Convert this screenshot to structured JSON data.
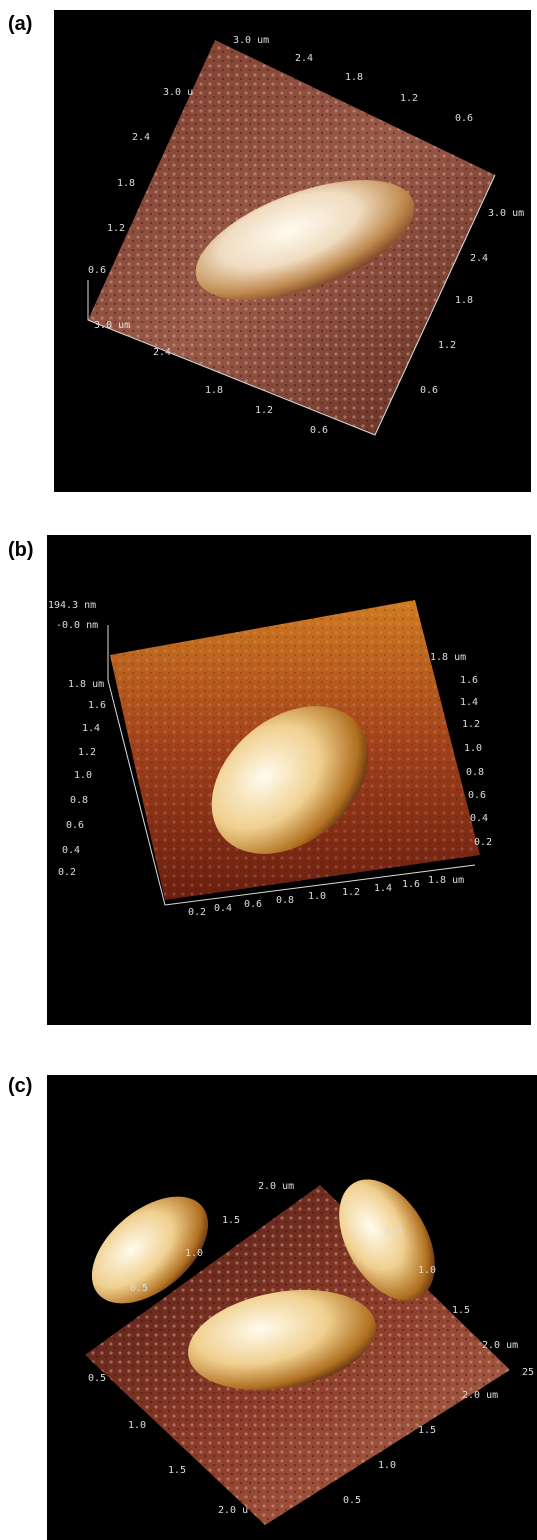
{
  "panels": [
    {
      "label": "(a)",
      "axis_labels": [
        "3.0 um",
        "2.4",
        "1.8",
        "1.2",
        "0.6",
        "3.0 u",
        "2.4",
        "1.8",
        "1.2",
        "0.6",
        "3.0 um",
        "2.4",
        "1.8",
        "1.2",
        "0.6",
        "3.0 um",
        "2.4",
        "1.8",
        "1.2",
        "0.6"
      ]
    },
    {
      "label": "(b)",
      "axis_labels": [
        "194.3 nm",
        "-0.0 nm",
        "1.8 um",
        "1.6",
        "1.4",
        "1.2",
        "1.0",
        "0.8",
        "0.6",
        "0.4",
        "0.2",
        "1.8 um",
        "1.6",
        "1.4",
        "1.2",
        "1.0",
        "0.8",
        "0.6",
        "0.4",
        "0.2",
        "0.2",
        "0.4",
        "0.6",
        "0.8",
        "1.0",
        "1.2",
        "1.4",
        "1.6",
        "1.8 um"
      ]
    },
    {
      "label": "(c)",
      "axis_labels": [
        "2.0 um",
        "1.5",
        "1.0",
        "0.5",
        "0.5",
        "1.0",
        "1.5",
        "2.0 um",
        "0.5",
        "1.0",
        "1.5",
        "2.0 u",
        "2.0 um",
        "1.5",
        "1.0",
        "0.5",
        "25"
      ]
    }
  ]
}
